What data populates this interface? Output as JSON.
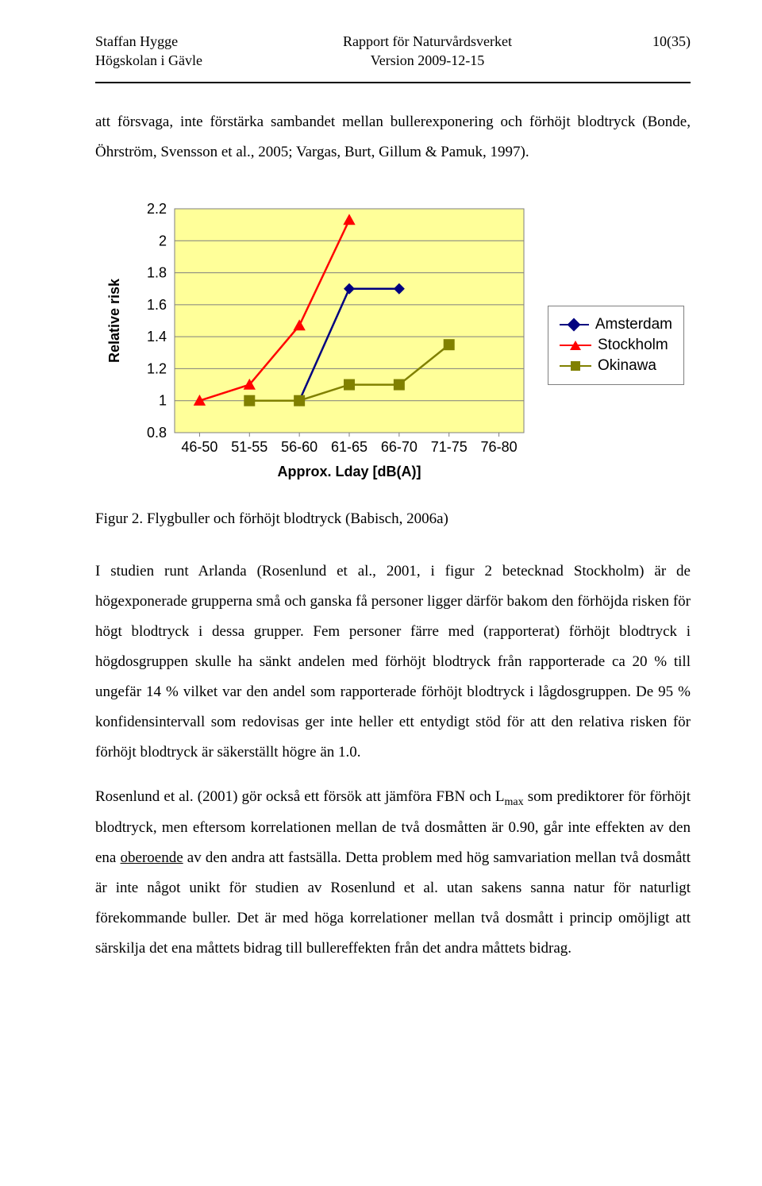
{
  "header": {
    "author": "Staffan Hygge",
    "affiliation": "Högskolan i Gävle",
    "title": "Rapport för Naturvårdsverket",
    "version": "Version 2009-12-15",
    "page_num": "10(35)"
  },
  "intro_para": "att försvaga, inte förstärka sambandet mellan bullerexponering och förhöjt blodtryck (Bonde, Öhrström, Svensson et al., 2005; Vargas, Burt, Gillum & Pamuk, 1997).",
  "chart": {
    "type": "line",
    "ylabel": "Relative risk",
    "xlabel": "Approx. Lday [dB(A)]",
    "categories": [
      "46-50",
      "51-55",
      "56-60",
      "61-65",
      "66-70",
      "71-75",
      "76-80"
    ],
    "yticks": [
      0.8,
      1,
      1.2,
      1.4,
      1.6,
      1.8,
      2,
      2.2
    ],
    "ylim": [
      0.8,
      2.2
    ],
    "plot_bg": "#ffff99",
    "grid_color": "#7f7f7f",
    "border_color": "#7f7f7f",
    "label_fontsize": 18,
    "tick_fontsize": 18,
    "line_width": 2.5,
    "marker_size": 7,
    "series": [
      {
        "name": "Amsterdam",
        "color": "#000080",
        "marker": "diamond",
        "x_indices": [
          2,
          3,
          4
        ],
        "y": [
          1.0,
          1.7,
          1.7
        ]
      },
      {
        "name": "Stockholm",
        "color": "#ff0000",
        "marker": "triangle",
        "x_indices": [
          0,
          1,
          2,
          3
        ],
        "y": [
          1.0,
          1.1,
          1.47,
          2.13
        ]
      },
      {
        "name": "Okinawa",
        "color": "#808000",
        "marker": "square",
        "x_indices": [
          1,
          2,
          3,
          4,
          5
        ],
        "y": [
          1.0,
          1.0,
          1.1,
          1.1,
          1.35
        ]
      }
    ],
    "legend_items": [
      "Amsterdam",
      "Stockholm",
      "Okinawa"
    ]
  },
  "figure_caption": "Figur 2. Flygbuller och förhöjt blodtryck (Babisch, 2006a)",
  "para2_before_sub": "I studien runt Arlanda (Rosenlund et al., 2001, i figur 2 betecknad Stockholm) är de högexponerade grupperna små och ganska få personer ligger därför bakom den förhöjda risken för högt blodtryck i dessa grupper. Fem personer färre med (rapporterat) förhöjt blodtryck i högdosgruppen skulle ha sänkt andelen med förhöjt blodtryck från rapporterade ca 20 % till ungefär 14 % vilket var den andel som rapporterade förhöjt blodtryck i lågdosgruppen. De 95 % konfidensintervall som redovisas ger inte heller ett entydigt stöd för att den relativa risken för förhöjt blodtryck är säkerställt högre än 1.0.",
  "para3_a": "Rosenlund et al. (2001) gör också ett försök att jämföra FBN och L",
  "para3_sub": "max",
  "para3_b": " som prediktorer för förhöjt blodtryck, men eftersom korrelationen mellan de två dosmåtten är 0.90, går inte effekten av den ena ",
  "para3_u": "oberoende",
  "para3_c": " av den andra att fastsälla. Detta problem med hög samvariation mellan två dosmått är inte något unikt för studien av Rosenlund et al. utan sakens sanna natur för naturligt förekommande buller. Det är med höga korrelationer mellan två dosmått i princip omöjligt att särskilja det ena måttets bidrag till bullereffekten från det andra måttets bidrag."
}
